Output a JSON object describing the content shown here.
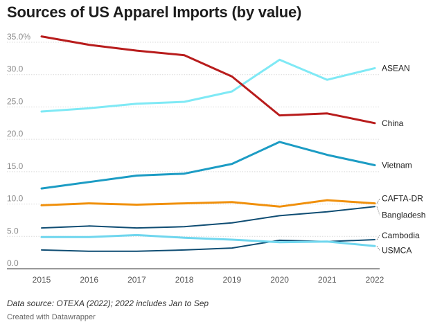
{
  "title": "Sources of US Apparel Imports (by value)",
  "notes": "Data source: OTEXA (2022); 2022 includes Jan to Sep",
  "credit": "Created with Datawrapper",
  "chart_data": {
    "type": "line",
    "title": "Sources of US Apparel Imports (by value)",
    "x": [
      2015,
      2016,
      2017,
      2018,
      2019,
      2020,
      2021,
      2022
    ],
    "ylim": [
      0,
      35
    ],
    "y_ticks": [
      {
        "value": 0,
        "label": "0.0"
      },
      {
        "value": 5,
        "label": "5.0"
      },
      {
        "value": 10,
        "label": "10.0"
      },
      {
        "value": 15,
        "label": "15.0"
      },
      {
        "value": 20,
        "label": "20.0"
      },
      {
        "value": 25,
        "label": "25.0"
      },
      {
        "value": 30,
        "label": "30.0"
      },
      {
        "value": 35,
        "label": "35.0%"
      }
    ],
    "grid": true,
    "legend": "inline labels at right end of lines",
    "series": [
      {
        "name": "China",
        "color": "#b81c1c",
        "values": [
          35.9,
          34.6,
          33.7,
          33.0,
          29.7,
          23.7,
          24.0,
          22.5
        ]
      },
      {
        "name": "ASEAN",
        "color": "#7fe9f5",
        "values": [
          24.3,
          24.8,
          25.5,
          25.8,
          27.4,
          32.3,
          29.2,
          31.0
        ]
      },
      {
        "name": "Vietnam",
        "color": "#1c9cc4",
        "values": [
          12.4,
          13.4,
          14.4,
          14.7,
          16.2,
          19.6,
          17.6,
          16.0
        ]
      },
      {
        "name": "CAFTA-DR",
        "color": "#f0900c",
        "values": [
          9.8,
          10.1,
          9.9,
          10.1,
          10.3,
          9.6,
          10.6,
          10.1
        ]
      },
      {
        "name": "Bangladesh",
        "color": "#0f4d73",
        "values": [
          6.3,
          6.6,
          6.3,
          6.5,
          7.1,
          8.2,
          8.8,
          9.6
        ]
      },
      {
        "name": "Cambodia",
        "color": "#0f4d73",
        "values": [
          2.9,
          2.7,
          2.7,
          2.9,
          3.2,
          4.4,
          4.2,
          4.5
        ]
      },
      {
        "name": "USMCA",
        "color": "#6fd6ee",
        "values": [
          4.9,
          4.9,
          5.2,
          4.8,
          4.5,
          4.1,
          4.2,
          3.5
        ]
      }
    ]
  }
}
